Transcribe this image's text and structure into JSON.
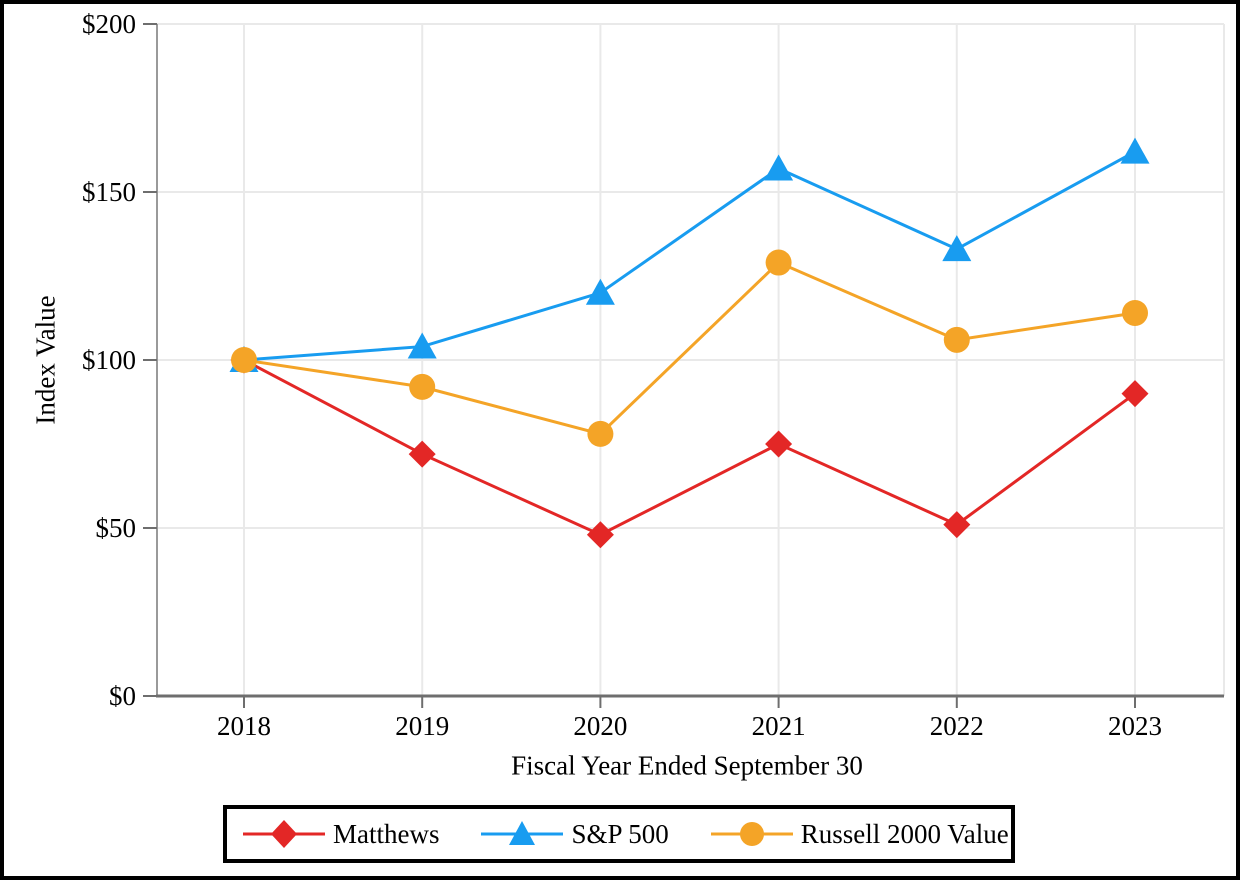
{
  "chart_data": {
    "type": "line",
    "title": "",
    "xlabel": "Fiscal Year Ended September 30",
    "ylabel": "Index Value",
    "categories": [
      "2018",
      "2019",
      "2020",
      "2021",
      "2022",
      "2023"
    ],
    "series": [
      {
        "name": "Matthews",
        "marker": "diamond",
        "color": "#E32726",
        "values": [
          100,
          72,
          48,
          75,
          51,
          90
        ]
      },
      {
        "name": "S&P 500",
        "marker": "triangle",
        "color": "#189CF0",
        "values": [
          100,
          104,
          120,
          157,
          133,
          162
        ]
      },
      {
        "name": "Russell 2000 Value",
        "marker": "circle",
        "color": "#F4A427",
        "values": [
          100,
          92,
          78,
          129,
          106,
          114
        ]
      }
    ],
    "ylim": [
      0,
      200
    ],
    "yticks": [
      0,
      50,
      100,
      150,
      200
    ],
    "ytick_labels": [
      "$0",
      "$50",
      "$100",
      "$150",
      "$200"
    ],
    "grid": true,
    "legend_position": "bottom"
  },
  "colors": {
    "grid": "#E9E9E9",
    "y_axis": "#9A9A9A",
    "x_axis": "#6E6E6E",
    "tick": "#6E6E6E",
    "text": "#000000",
    "background": "#FFFFFF",
    "border": "#000000"
  }
}
